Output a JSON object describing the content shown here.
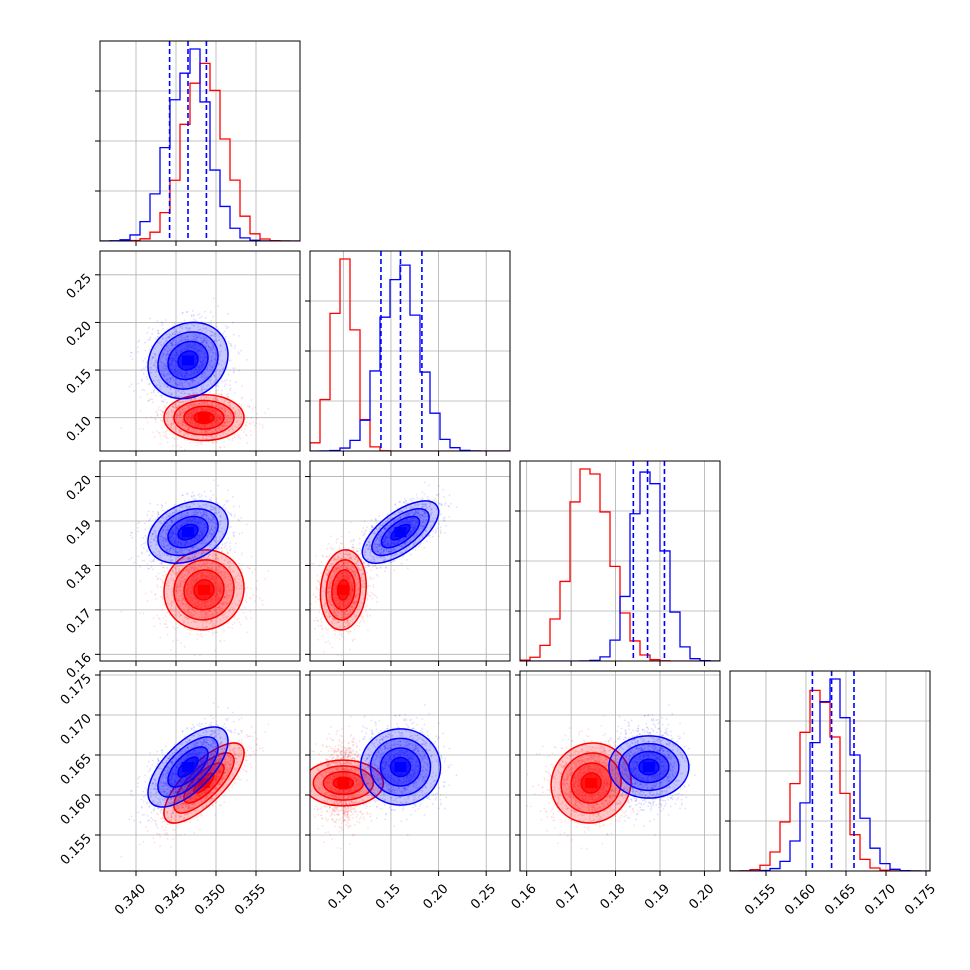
{
  "chart_data": {
    "type": "corner",
    "grid": true,
    "parameters": [
      {
        "lim": [
          0.3355,
          0.3605
        ],
        "ticks": [
          0.34,
          0.345,
          0.35,
          0.355
        ],
        "labels": [
          "0.340",
          "0.345",
          "0.350",
          "0.355"
        ]
      },
      {
        "lim": [
          0.065,
          0.275
        ],
        "ticks": [
          0.1,
          0.15,
          0.2,
          0.25
        ],
        "labels": [
          "0.10",
          "0.15",
          "0.20",
          "0.25"
        ]
      },
      {
        "lim": [
          0.1585,
          0.2035
        ],
        "ticks": [
          0.16,
          0.17,
          0.18,
          0.19,
          0.2
        ],
        "labels": [
          "0.16",
          "0.17",
          "0.18",
          "0.19",
          "0.20"
        ]
      },
      {
        "lim": [
          0.1505,
          0.1755
        ],
        "ticks": [
          0.155,
          0.16,
          0.165,
          0.17,
          0.175
        ],
        "labels": [
          "0.155",
          "0.160",
          "0.165",
          "0.170",
          "0.175"
        ]
      }
    ],
    "series": [
      {
        "color": "#ff0000",
        "mean": [
          0.3485,
          0.1,
          0.1745,
          0.1615
        ],
        "sd": [
          0.0025,
          0.012,
          0.0045,
          0.0025
        ],
        "corr": [
          [
            1,
            0,
            0.05,
            0.75
          ],
          [
            0,
            1,
            0.1,
            0
          ],
          [
            0.05,
            0.1,
            1,
            0.05
          ],
          [
            0.75,
            0,
            0.05,
            1
          ]
        ],
        "quantile_lines": []
      },
      {
        "color": "#0000ff",
        "mean": [
          0.3465,
          0.16,
          0.1875,
          0.1635
        ],
        "sd": [
          0.0025,
          0.02,
          0.0035,
          0.0025
        ],
        "corr": [
          [
            1,
            0.15,
            0.3,
            0.65
          ],
          [
            0.15,
            1,
            0.65,
            0
          ],
          [
            0.3,
            0.65,
            1,
            0
          ],
          [
            0.65,
            0,
            0,
            1
          ]
        ],
        "quantile_lines": [
          [
            0.3442,
            0.3465,
            0.3488
          ],
          [
            0.1395,
            0.16,
            0.1825
          ],
          [
            0.184,
            0.1872,
            0.191
          ],
          [
            0.1608,
            0.1632,
            0.166
          ]
        ]
      }
    ]
  }
}
